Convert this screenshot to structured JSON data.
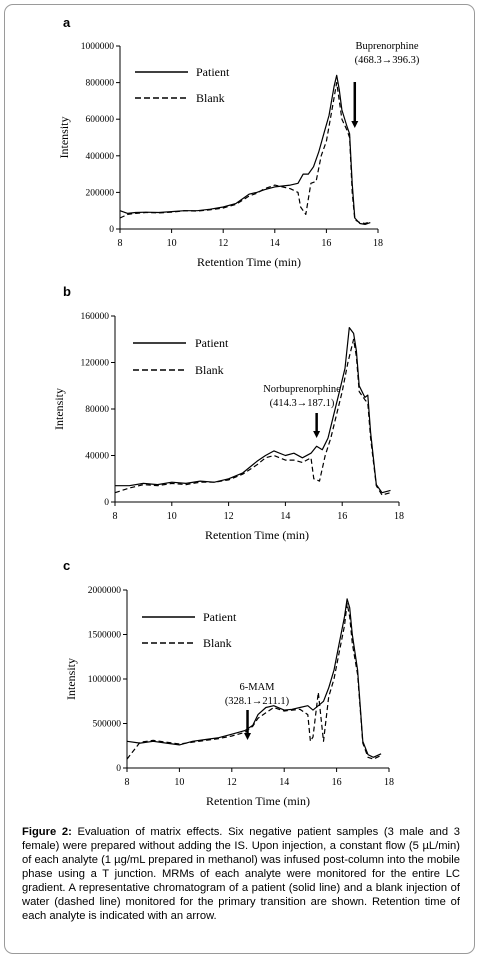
{
  "figure": {
    "caption_label": "Figure 2:",
    "caption_text": "Evaluation of matrix effects. Six negative patient samples (3 male and 3 female) were prepared without adding the IS. Upon injection, a constant flow (5 µL/min) of each analyte (1 µg/mL prepared in methanol) was infused post-column into the mobile phase using a T junction. MRMs of each analyte were monitored for the entire LC gradient. A representative chromatogram of a patient (solid line) and a blank injection of water (dashed line) monitored for the primary transition are shown. Retention time of each analyte is indicated with an arrow."
  },
  "colors": {
    "line": "#000000",
    "axis": "#000000",
    "frame": "#9a9a9a"
  },
  "chart_data": [
    {
      "panel_label": "a",
      "type": "line",
      "xlabel": "Retention Time (min)",
      "ylabel": "Intensity",
      "xlim": [
        8,
        18
      ],
      "ylim": [
        0,
        1000000
      ],
      "xticks": [
        8,
        10,
        12,
        14,
        16,
        18
      ],
      "yticks": [
        0,
        200000,
        400000,
        600000,
        800000,
        1000000
      ],
      "legend": [
        "Patient",
        "Blank"
      ],
      "annotation": {
        "lines": [
          "Buprenorphine",
          "(468.3→396.3)"
        ],
        "x": 17.1
      },
      "series": [
        {
          "name": "Patient",
          "style": "solid",
          "x": [
            8.0,
            8.3,
            8.6,
            9.0,
            9.5,
            10.0,
            10.5,
            11.0,
            11.5,
            12.0,
            12.5,
            13.0,
            13.3,
            13.6,
            14.0,
            14.3,
            14.6,
            14.9,
            15.1,
            15.3,
            15.5,
            15.7,
            15.9,
            16.1,
            16.3,
            16.4,
            16.5,
            16.6,
            16.8,
            16.9,
            17.0,
            17.1,
            17.3,
            17.5,
            17.7
          ],
          "y": [
            100000,
            85000,
            90000,
            92000,
            90000,
            95000,
            100000,
            100000,
            108000,
            120000,
            140000,
            190000,
            200000,
            215000,
            230000,
            235000,
            240000,
            250000,
            300000,
            300000,
            340000,
            420000,
            520000,
            620000,
            780000,
            840000,
            760000,
            650000,
            560000,
            520000,
            250000,
            60000,
            30000,
            25000,
            35000
          ]
        },
        {
          "name": "Blank",
          "style": "dashed",
          "x": [
            8.0,
            8.3,
            8.6,
            9.0,
            9.5,
            10.0,
            10.5,
            11.0,
            11.5,
            12.0,
            12.5,
            13.0,
            13.3,
            13.6,
            14.0,
            14.3,
            14.6,
            14.9,
            15.0,
            15.2,
            15.4,
            15.6,
            15.8,
            16.0,
            16.2,
            16.4,
            16.5,
            16.6,
            16.8,
            16.9,
            17.0,
            17.1,
            17.3,
            17.5,
            17.7
          ],
          "y": [
            60000,
            80000,
            85000,
            90000,
            88000,
            92000,
            100000,
            98000,
            105000,
            115000,
            135000,
            180000,
            195000,
            220000,
            240000,
            230000,
            220000,
            200000,
            120000,
            80000,
            250000,
            260000,
            400000,
            480000,
            640000,
            800000,
            700000,
            600000,
            540000,
            500000,
            200000,
            50000,
            35000,
            30000,
            40000
          ]
        }
      ]
    },
    {
      "panel_label": "b",
      "type": "line",
      "xlabel": "Retention Time (min)",
      "ylabel": "Intensity",
      "xlim": [
        8,
        18
      ],
      "ylim": [
        0,
        160000
      ],
      "xticks": [
        8,
        10,
        12,
        14,
        16,
        18
      ],
      "yticks": [
        0,
        40000,
        80000,
        120000,
        160000
      ],
      "legend": [
        "Patient",
        "Blank"
      ],
      "annotation": {
        "lines": [
          "Norbuprenorphine",
          "(414.3→187.1)"
        ],
        "x": 15.1
      },
      "series": [
        {
          "name": "Patient",
          "style": "solid",
          "x": [
            8.0,
            8.5,
            9.0,
            9.5,
            10.0,
            10.5,
            11.0,
            11.5,
            12.0,
            12.5,
            13.0,
            13.3,
            13.6,
            14.0,
            14.3,
            14.6,
            14.9,
            15.1,
            15.3,
            15.5,
            15.7,
            15.9,
            16.1,
            16.25,
            16.4,
            16.5,
            16.6,
            16.8,
            16.9,
            17.0,
            17.2,
            17.4,
            17.7
          ],
          "y": [
            14000,
            14000,
            16000,
            15000,
            17000,
            16000,
            18000,
            17000,
            20000,
            25000,
            35000,
            40000,
            44000,
            40000,
            42000,
            38000,
            42000,
            48000,
            45000,
            55000,
            75000,
            95000,
            115000,
            150000,
            145000,
            130000,
            100000,
            90000,
            92000,
            60000,
            15000,
            8000,
            10000
          ]
        },
        {
          "name": "Blank",
          "style": "dashed",
          "x": [
            8.0,
            8.5,
            9.0,
            9.5,
            10.0,
            10.5,
            11.0,
            11.5,
            12.0,
            12.5,
            13.0,
            13.3,
            13.6,
            14.0,
            14.3,
            14.6,
            14.9,
            15.0,
            15.2,
            15.4,
            15.6,
            15.8,
            16.0,
            16.2,
            16.4,
            16.5,
            16.6,
            16.8,
            16.9,
            17.0,
            17.2,
            17.4,
            17.7
          ],
          "y": [
            8000,
            12000,
            15000,
            14000,
            16000,
            15000,
            17000,
            17000,
            19000,
            24000,
            32000,
            38000,
            40000,
            36000,
            36000,
            34000,
            38000,
            20000,
            18000,
            40000,
            55000,
            75000,
            95000,
            120000,
            140000,
            125000,
            95000,
            88000,
            85000,
            55000,
            14000,
            6000,
            8000
          ]
        }
      ]
    },
    {
      "panel_label": "c",
      "type": "line",
      "xlabel": "Retention Time (min)",
      "ylabel": "Intensity",
      "xlim": [
        8,
        18
      ],
      "ylim": [
        0,
        2000000
      ],
      "xticks": [
        8,
        10,
        12,
        14,
        16,
        18
      ],
      "yticks": [
        0,
        500000,
        1000000,
        1500000,
        2000000
      ],
      "legend": [
        "Patient",
        "Blank"
      ],
      "annotation": {
        "lines": [
          "6-MAM",
          "(328.1→211.1)"
        ],
        "x": 12.6
      },
      "series": [
        {
          "name": "Patient",
          "style": "solid",
          "x": [
            8.0,
            8.5,
            9.0,
            9.5,
            10.0,
            10.5,
            11.0,
            11.5,
            12.0,
            12.5,
            12.8,
            13.0,
            13.3,
            13.6,
            14.0,
            14.3,
            14.6,
            14.9,
            15.1,
            15.3,
            15.5,
            15.7,
            15.9,
            16.1,
            16.3,
            16.4,
            16.5,
            16.6,
            16.8,
            17.0,
            17.2,
            17.4,
            17.7
          ],
          "y": [
            300000,
            280000,
            300000,
            280000,
            260000,
            300000,
            320000,
            340000,
            380000,
            420000,
            480000,
            600000,
            680000,
            700000,
            650000,
            660000,
            680000,
            700000,
            650000,
            700000,
            750000,
            900000,
            1100000,
            1400000,
            1700000,
            1900000,
            1800000,
            1500000,
            1100000,
            300000,
            150000,
            120000,
            160000
          ]
        },
        {
          "name": "Blank",
          "style": "dashed",
          "x": [
            8.0,
            8.5,
            9.0,
            9.5,
            10.0,
            10.5,
            11.0,
            11.5,
            12.0,
            12.5,
            12.8,
            13.0,
            13.3,
            13.6,
            14.0,
            14.3,
            14.6,
            14.9,
            15.0,
            15.1,
            15.3,
            15.5,
            15.7,
            15.9,
            16.1,
            16.3,
            16.4,
            16.5,
            16.6,
            16.8,
            17.0,
            17.2,
            17.4,
            17.7
          ],
          "y": [
            100000,
            290000,
            310000,
            290000,
            270000,
            290000,
            310000,
            330000,
            360000,
            400000,
            470000,
            560000,
            620000,
            680000,
            640000,
            650000,
            660000,
            600000,
            300000,
            350000,
            850000,
            300000,
            800000,
            1000000,
            1300000,
            1600000,
            1850000,
            1700000,
            1400000,
            1050000,
            280000,
            120000,
            100000,
            140000
          ]
        }
      ]
    }
  ]
}
